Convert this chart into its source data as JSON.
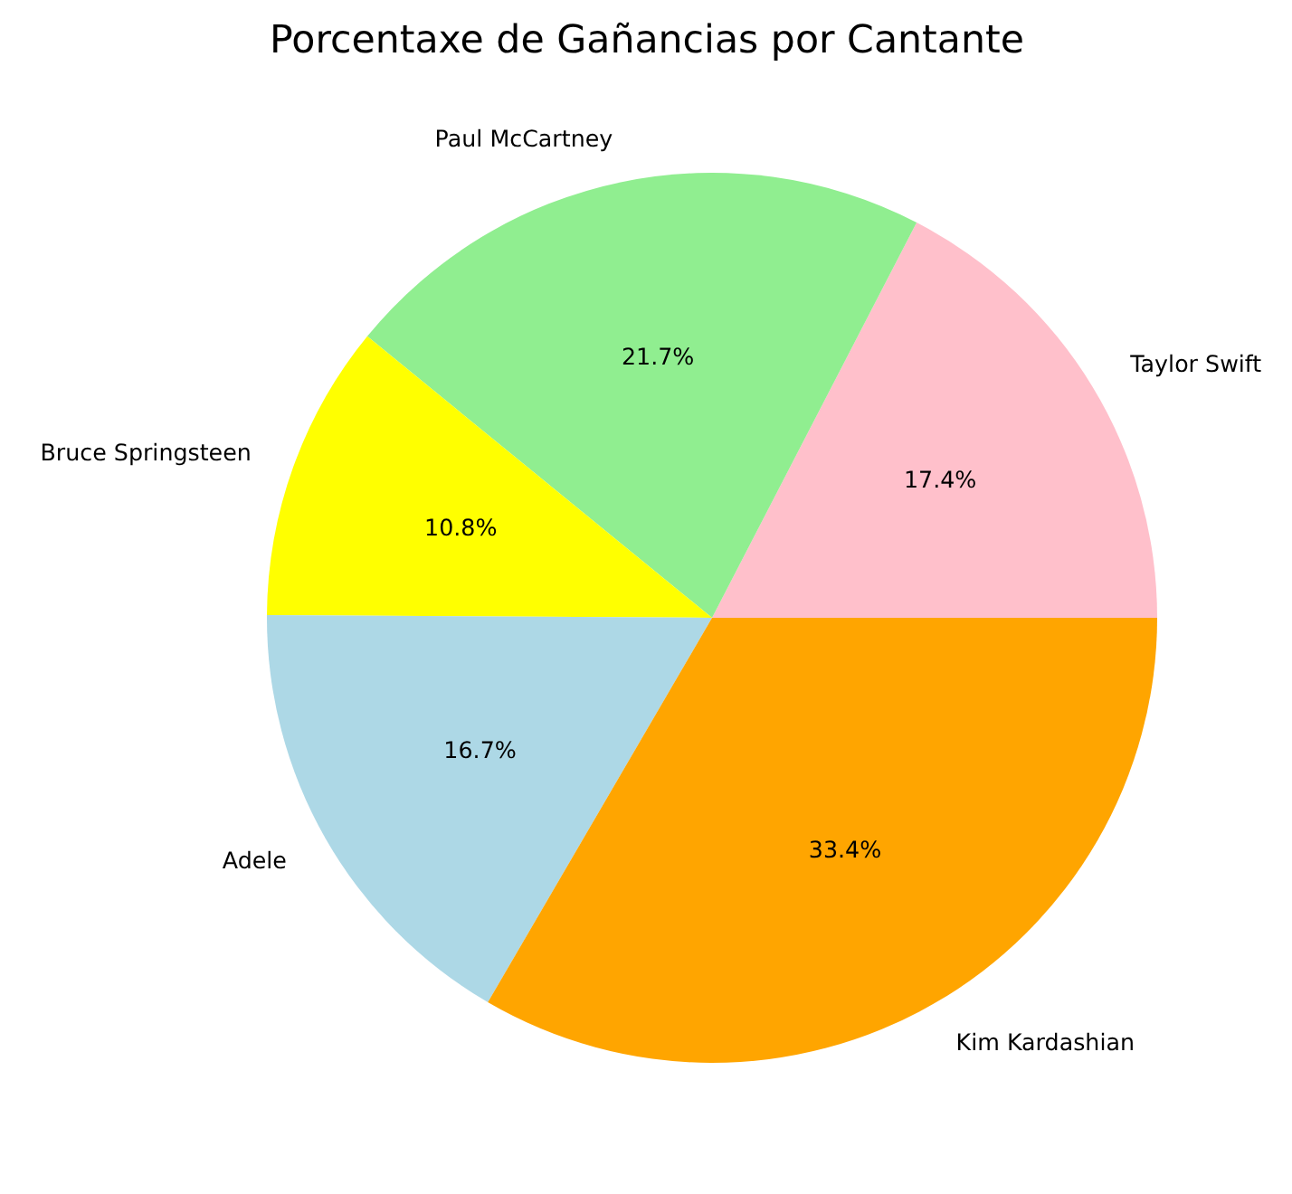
{
  "chart_data": {
    "type": "pie",
    "title": "Porcentaxe de Gañancias por Cantante",
    "categories": [
      "Taylor Swift",
      "Paul McCartney",
      "Bruce Springsteen",
      "Adele",
      "Kim Kardashian"
    ],
    "values": [
      17.4,
      21.7,
      10.8,
      16.7,
      33.4
    ],
    "colors": [
      "#ffc0cb",
      "#90ee90",
      "#ffff00",
      "#add8e6",
      "#ffa500"
    ],
    "value_labels": [
      "17.4%",
      "21.7%",
      "10.8%",
      "16.7%",
      "33.4%"
    ]
  }
}
